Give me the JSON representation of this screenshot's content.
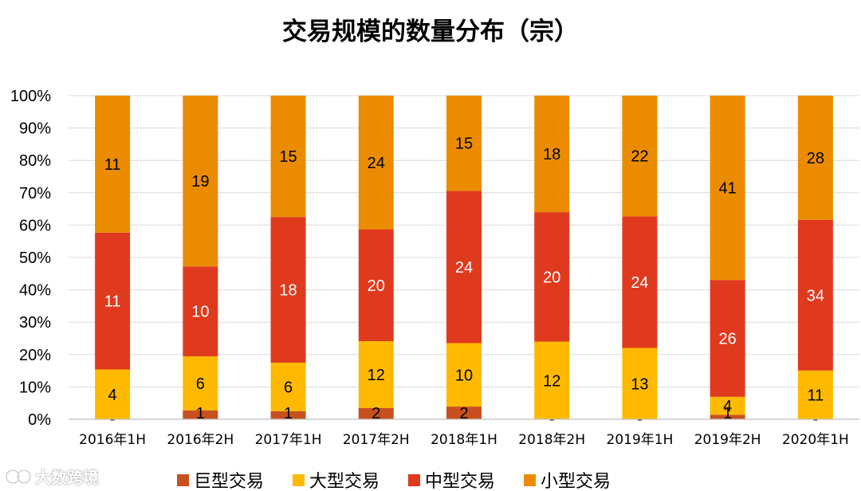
{
  "chart_data": {
    "type": "bar",
    "stacked": true,
    "normalized": true,
    "title": "交易规模的数量分布（宗）",
    "categories": [
      "2016年1H",
      "2016年2H",
      "2017年1H",
      "2017年2H",
      "2018年1H",
      "2018年2H",
      "2019年1H",
      "2019年2H",
      "2020年1H"
    ],
    "series": [
      {
        "name": "巨型交易",
        "color": "#c8501e",
        "values": [
          0,
          1,
          1,
          2,
          2,
          0,
          0,
          1,
          0
        ]
      },
      {
        "name": "大型交易",
        "color": "#ffba00",
        "values": [
          4,
          6,
          6,
          12,
          10,
          12,
          13,
          4,
          11
        ]
      },
      {
        "name": "中型交易",
        "color": "#e03a1e",
        "values": [
          11,
          10,
          18,
          20,
          24,
          20,
          24,
          26,
          34
        ]
      },
      {
        "name": "小型交易",
        "color": "#eb8c00",
        "values": [
          11,
          19,
          15,
          24,
          15,
          18,
          22,
          41,
          28
        ]
      }
    ],
    "yticks": [
      "0%",
      "10%",
      "20%",
      "30%",
      "40%",
      "50%",
      "60%",
      "70%",
      "80%",
      "90%",
      "100%"
    ],
    "ylim": [
      0,
      100
    ],
    "grid": true,
    "legend": "bottom",
    "zero_label": "-"
  },
  "watermark": {
    "text": "大数跨境"
  }
}
